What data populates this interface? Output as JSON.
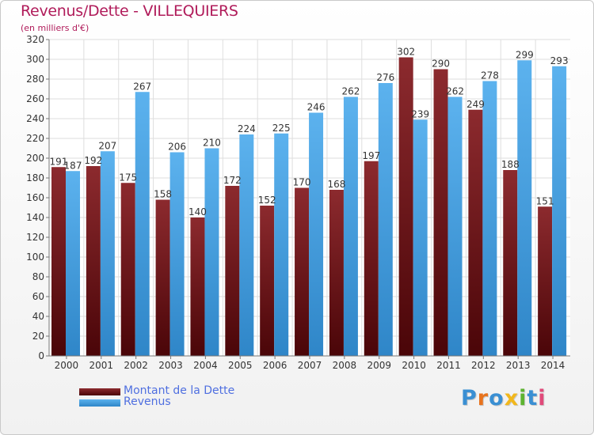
{
  "title": "Revenus/Dette - VILLEQUIERS",
  "subtitle": "(en milliers d'€)",
  "logo": {
    "text": "Proxiti",
    "colors": [
      "#3a8fd3",
      "#e8731d",
      "#3a8fd3",
      "#f2b71c",
      "#5db330",
      "#3a8fd3",
      "#e04a7a"
    ]
  },
  "chart_data": {
    "type": "bar",
    "categories": [
      "2000",
      "2001",
      "2002",
      "2003",
      "2004",
      "2005",
      "2006",
      "2007",
      "2008",
      "2009",
      "2010",
      "2011",
      "2012",
      "2013",
      "2014"
    ],
    "series": [
      {
        "name": "Montant de la Dette",
        "color": "#7a1f24",
        "values": [
          191,
          192,
          175,
          158,
          140,
          172,
          152,
          170,
          168,
          197,
          302,
          290,
          249,
          188,
          151
        ]
      },
      {
        "name": "Revenus",
        "color": "#4aa4e4",
        "values": [
          187,
          207,
          267,
          206,
          210,
          224,
          225,
          246,
          262,
          276,
          239,
          262,
          278,
          299,
          293
        ]
      }
    ],
    "ylim": [
      0,
      320
    ],
    "yticks": [
      0,
      20,
      40,
      60,
      80,
      100,
      120,
      140,
      160,
      180,
      200,
      220,
      240,
      260,
      280,
      300,
      320
    ],
    "grid": true,
    "legend_position": "bottom-left"
  }
}
